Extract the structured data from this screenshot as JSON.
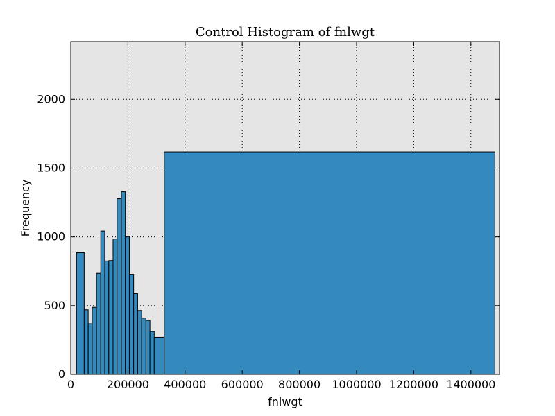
{
  "chart_data": {
    "type": "bar",
    "title": "Control Histogram of fnlwgt",
    "xlabel": "fnlwgt",
    "ylabel": "Frequency",
    "xlim": [
      0,
      1500000
    ],
    "ylim": [
      0,
      2420
    ],
    "grid": true,
    "xticks": [
      0,
      200000,
      400000,
      600000,
      800000,
      1000000,
      1200000,
      1400000
    ],
    "xtick_labels": [
      "0",
      "200000",
      "400000",
      "600000",
      "800000",
      "1000000",
      "1200000",
      "1400000"
    ],
    "yticks": [
      0,
      500,
      1000,
      1500,
      2000
    ],
    "ytick_labels": [
      "0",
      "500",
      "1000",
      "1500",
      "2000"
    ],
    "bins": [
      {
        "x0": 20000,
        "x1": 47000,
        "value": 885
      },
      {
        "x0": 47000,
        "x1": 61000,
        "value": 470
      },
      {
        "x0": 61000,
        "x1": 75000,
        "value": 368
      },
      {
        "x0": 75000,
        "x1": 90000,
        "value": 488
      },
      {
        "x0": 90000,
        "x1": 105000,
        "value": 735
      },
      {
        "x0": 105000,
        "x1": 119000,
        "value": 1043
      },
      {
        "x0": 119000,
        "x1": 133000,
        "value": 825
      },
      {
        "x0": 133000,
        "x1": 148000,
        "value": 828
      },
      {
        "x0": 148000,
        "x1": 162000,
        "value": 985
      },
      {
        "x0": 162000,
        "x1": 177000,
        "value": 1278
      },
      {
        "x0": 177000,
        "x1": 191000,
        "value": 1328
      },
      {
        "x0": 191000,
        "x1": 205000,
        "value": 1000
      },
      {
        "x0": 205000,
        "x1": 220000,
        "value": 728
      },
      {
        "x0": 220000,
        "x1": 234000,
        "value": 588
      },
      {
        "x0": 234000,
        "x1": 248000,
        "value": 465
      },
      {
        "x0": 248000,
        "x1": 263000,
        "value": 410
      },
      {
        "x0": 263000,
        "x1": 277000,
        "value": 393
      },
      {
        "x0": 277000,
        "x1": 292000,
        "value": 312
      },
      {
        "x0": 292000,
        "x1": 327000,
        "value": 270
      },
      {
        "x0": 327000,
        "x1": 1484000,
        "value": 1618
      }
    ],
    "colors": {
      "bar_fill": "#348ABD",
      "bar_edge": "#000000",
      "plot_background": "#E5E5E5",
      "grid": "#000000"
    }
  }
}
